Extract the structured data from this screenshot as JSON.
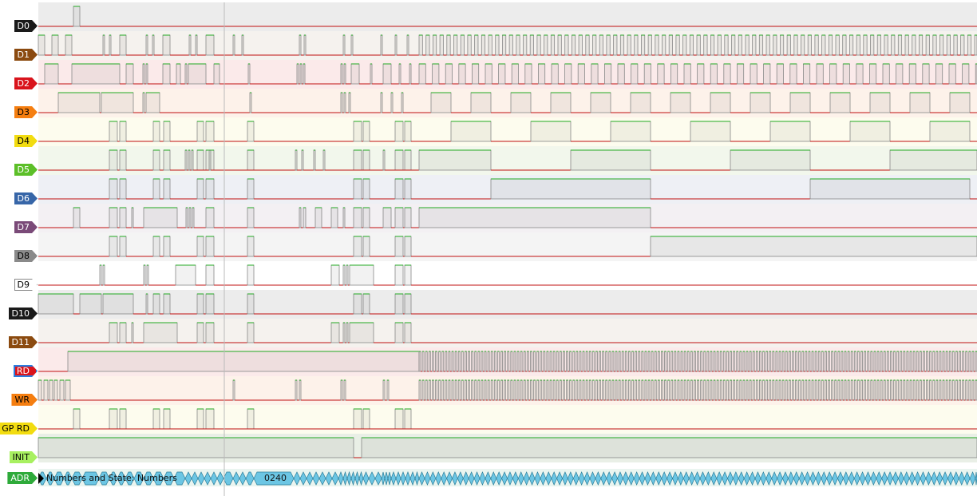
{
  "channels": [
    {
      "label": "D0",
      "tag_color": "#1a1a1a",
      "text_color": "#ffffff",
      "band": "#ececec"
    },
    {
      "label": "D1",
      "tag_color": "#8b4a0f",
      "text_color": "#ffffff",
      "band": "#f5f2ee"
    },
    {
      "label": "D2",
      "tag_color": "#d9141c",
      "text_color": "#ffffff",
      "band": "#fbeaea"
    },
    {
      "label": "D3",
      "tag_color": "#f57e10",
      "text_color": "#000000",
      "band": "#fdf2ea"
    },
    {
      "label": "D4",
      "tag_color": "#f2dc10",
      "text_color": "#000000",
      "band": "#fdfcee"
    },
    {
      "label": "D5",
      "tag_color": "#5cbf28",
      "text_color": "#ffffff",
      "band": "#f2f7ec"
    },
    {
      "label": "D6",
      "tag_color": "#3766a8",
      "text_color": "#ffffff",
      "band": "#eef0f5"
    },
    {
      "label": "D7",
      "tag_color": "#7a4a78",
      "text_color": "#ffffff",
      "band": "#f3f0f3"
    },
    {
      "label": "D8",
      "tag_color": "#8a8a8a",
      "text_color": "#000000",
      "band": "#f4f4f4"
    },
    {
      "label": "D9",
      "tag_color": "#ffffff",
      "text_color": "#000000",
      "band": "#ffffff"
    },
    {
      "label": "D10",
      "tag_color": "#1a1a1a",
      "text_color": "#ffffff",
      "band": "#ececec"
    },
    {
      "label": "D11",
      "tag_color": "#8b4a0f",
      "text_color": "#ffffff",
      "band": "#f5f2ee"
    },
    {
      "label": "RD",
      "tag_color": "#d9141c",
      "text_color": "#ffffff",
      "band": "#fbeaea",
      "selected": true
    },
    {
      "label": "WR",
      "tag_color": "#f57e10",
      "text_color": "#000000",
      "band": "#fdf2ea"
    },
    {
      "label": "GP RD",
      "tag_color": "#f2dc10",
      "text_color": "#000000",
      "band": "#fdfcee"
    },
    {
      "label": "INIT",
      "tag_color": "#a8f060",
      "text_color": "#000000",
      "band": "#e9efe6"
    },
    {
      "label": "ADR",
      "tag_color": "#2eaa3a",
      "text_color": "#ffffff",
      "band": "#eaf5f0"
    }
  ],
  "bus": {
    "tooltip": "Numbers and State: Numbers",
    "value_label": "0240",
    "fill": "#6cc6e4"
  },
  "colors": {
    "high_line": "#22aa22",
    "low_line": "#c01010",
    "edge": "#888888",
    "cursor": "#bbbbbb"
  }
}
